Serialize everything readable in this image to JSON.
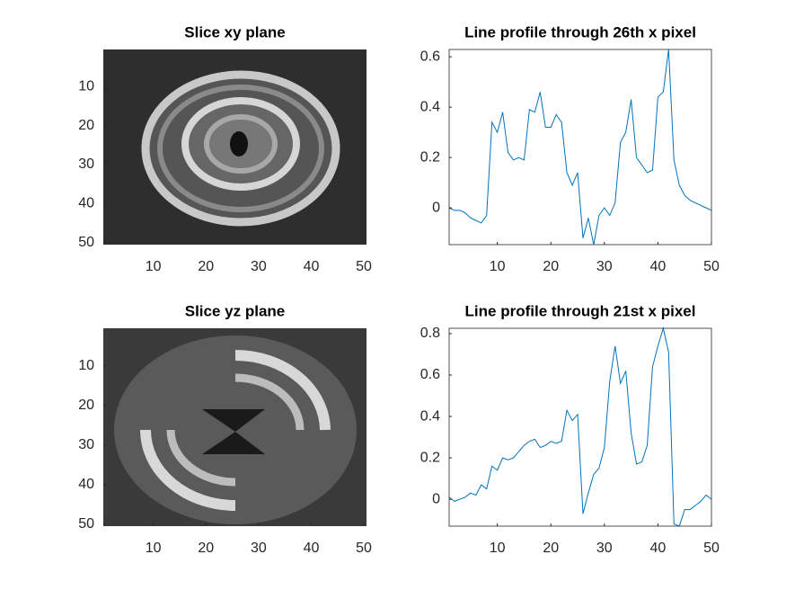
{
  "chart_data": [
    {
      "type": "image",
      "title": "Slice xy plane",
      "xlim": [
        0.5,
        50.5
      ],
      "ylim": [
        0.5,
        50.5
      ],
      "ydir": "reverse",
      "xticks": [
        10,
        20,
        30,
        40,
        50
      ],
      "yticks": [
        10,
        20,
        30,
        40,
        50
      ]
    },
    {
      "type": "line",
      "title": "Line profile through 26th x pixel",
      "color": "#0072bd",
      "x": [
        1,
        2,
        3,
        4,
        5,
        6,
        7,
        8,
        9,
        10,
        11,
        12,
        13,
        14,
        15,
        16,
        17,
        18,
        19,
        20,
        21,
        22,
        23,
        24,
        25,
        26,
        27,
        28,
        29,
        30,
        31,
        32,
        33,
        34,
        35,
        36,
        37,
        38,
        39,
        40,
        41,
        42,
        43,
        44,
        45,
        46,
        47,
        48,
        49,
        50
      ],
      "values": [
        0.0,
        -0.01,
        -0.01,
        -0.02,
        -0.04,
        -0.05,
        -0.06,
        -0.03,
        0.34,
        0.3,
        0.38,
        0.22,
        0.19,
        0.2,
        0.19,
        0.39,
        0.38,
        0.46,
        0.32,
        0.32,
        0.37,
        0.34,
        0.14,
        0.09,
        0.14,
        -0.12,
        -0.04,
        -0.146,
        -0.03,
        0.0,
        -0.03,
        0.02,
        0.26,
        0.3,
        0.43,
        0.2,
        0.17,
        0.14,
        0.15,
        0.44,
        0.46,
        0.629,
        0.19,
        0.09,
        0.05,
        0.03,
        0.02,
        0.01,
        0.0,
        -0.01
      ],
      "xlim": [
        1,
        50
      ],
      "ylim": [
        -0.146,
        0.629
      ],
      "xticks": [
        10,
        20,
        30,
        40,
        50
      ],
      "yticks": [
        0,
        0.2,
        0.4,
        0.6
      ]
    },
    {
      "type": "image",
      "title": "Slice yz plane",
      "xlim": [
        0.5,
        50.5
      ],
      "ylim": [
        0.5,
        50.5
      ],
      "ydir": "reverse",
      "xticks": [
        10,
        20,
        30,
        40,
        50
      ],
      "yticks": [
        10,
        20,
        30,
        40,
        50
      ]
    },
    {
      "type": "line",
      "title": "Line profile through 21st x pixel",
      "color": "#0072bd",
      "x": [
        1,
        2,
        3,
        4,
        5,
        6,
        7,
        8,
        9,
        10,
        11,
        12,
        13,
        14,
        15,
        16,
        17,
        18,
        19,
        20,
        21,
        22,
        23,
        24,
        25,
        26,
        27,
        28,
        29,
        30,
        31,
        32,
        33,
        34,
        35,
        36,
        37,
        38,
        39,
        40,
        41,
        42,
        43,
        44,
        45,
        46,
        47,
        48,
        49,
        50
      ],
      "values": [
        0.01,
        -0.01,
        0.0,
        0.01,
        0.03,
        0.02,
        0.07,
        0.05,
        0.16,
        0.14,
        0.2,
        0.19,
        0.2,
        0.23,
        0.26,
        0.28,
        0.29,
        0.25,
        0.26,
        0.28,
        0.27,
        0.28,
        0.43,
        0.38,
        0.41,
        -0.07,
        0.03,
        0.12,
        0.15,
        0.25,
        0.57,
        0.74,
        0.56,
        0.62,
        0.32,
        0.17,
        0.18,
        0.26,
        0.64,
        0.74,
        0.826,
        0.71,
        -0.12,
        -0.13,
        -0.05,
        -0.05,
        -0.03,
        -0.01,
        0.02,
        0.0
      ],
      "xlim": [
        1,
        50
      ],
      "ylim": [
        -0.13,
        0.826
      ],
      "xticks": [
        10,
        20,
        30,
        40,
        50
      ],
      "yticks": [
        0,
        0.2,
        0.4,
        0.6,
        0.8
      ]
    }
  ]
}
